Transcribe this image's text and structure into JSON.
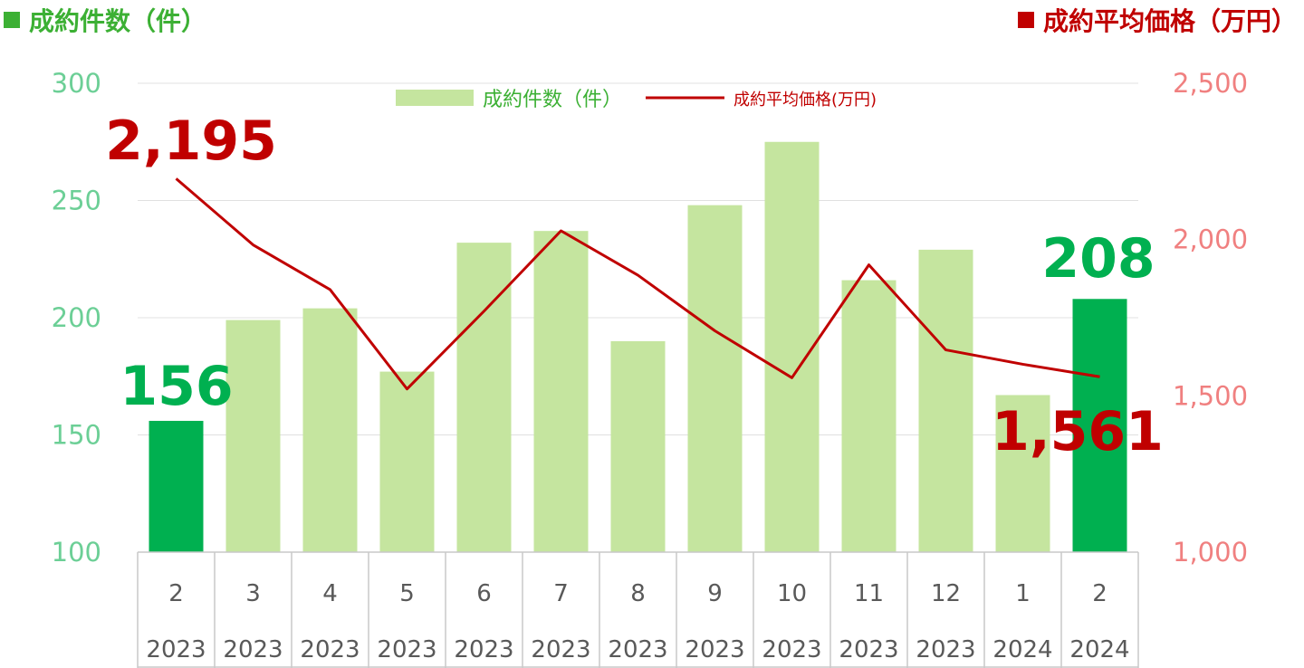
{
  "header": {
    "left_title": "成約件数（件）",
    "right_title": "成約平均価格（万円）"
  },
  "legend": {
    "bar_label": "成約件数（件）",
    "line_label": "成約平均価格(万円)"
  },
  "colors": {
    "bar_normal": "#c5e59f",
    "bar_highlight": "#00b050",
    "line": "#c00000",
    "left_axis_text": "#6ccf96",
    "right_axis_text": "#f08080",
    "count_title": "#3cb034",
    "gridline": "#e0e0e0",
    "table_border": "#c8c8c8",
    "category_text": "#595959"
  },
  "chart_data": {
    "type": "bar",
    "categories": [
      "2",
      "3",
      "4",
      "5",
      "6",
      "7",
      "8",
      "9",
      "10",
      "11",
      "12",
      "1",
      "2"
    ],
    "category_years": [
      "2023",
      "2023",
      "2023",
      "2023",
      "2023",
      "2023",
      "2023",
      "2023",
      "2023",
      "2023",
      "2023",
      "2024",
      "2024"
    ],
    "series": [
      {
        "name": "成約件数（件）",
        "type": "bar",
        "axis": "left",
        "values": [
          156,
          199,
          204,
          177,
          232,
          237,
          190,
          248,
          275,
          216,
          229,
          167,
          208
        ],
        "highlight": [
          true,
          false,
          false,
          false,
          false,
          false,
          false,
          false,
          false,
          false,
          false,
          false,
          true
        ]
      },
      {
        "name": "成約平均価格(万円)",
        "type": "line",
        "axis": "right",
        "values": [
          2195,
          1983,
          1840,
          1522,
          1771,
          2028,
          1886,
          1708,
          1558,
          1919,
          1647,
          1601,
          1561
        ]
      }
    ],
    "ylim": [
      100,
      300
    ],
    "yticks": [
      "100",
      "150",
      "200",
      "250",
      "300"
    ],
    "y2lim": [
      1000,
      2500
    ],
    "y2ticks": [
      "1,000",
      "1,500",
      "2,000",
      "2,500"
    ],
    "grid": true,
    "legend_position": "top-center",
    "annotations": [
      {
        "text": "156",
        "series": 0,
        "index": 0
      },
      {
        "text": "208",
        "series": 0,
        "index": 12
      },
      {
        "text": "2,195",
        "series": 1,
        "index": 0
      },
      {
        "text": "1,561",
        "series": 1,
        "index": 12
      }
    ]
  }
}
